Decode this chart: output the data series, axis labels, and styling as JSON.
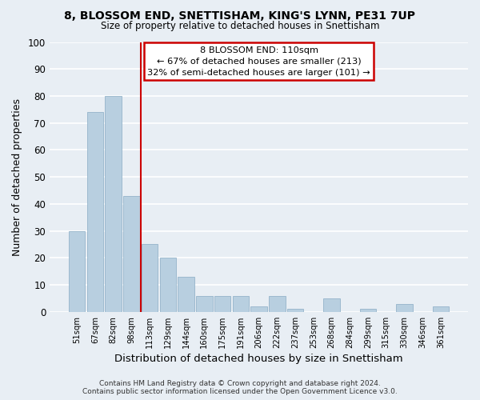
{
  "title": "8, BLOSSOM END, SNETTISHAM, KING'S LYNN, PE31 7UP",
  "subtitle": "Size of property relative to detached houses in Snettisham",
  "xlabel": "Distribution of detached houses by size in Snettisham",
  "ylabel": "Number of detached properties",
  "bar_color": "#b8cfe0",
  "bar_edge_color": "#95b4cb",
  "categories": [
    "51sqm",
    "67sqm",
    "82sqm",
    "98sqm",
    "113sqm",
    "129sqm",
    "144sqm",
    "160sqm",
    "175sqm",
    "191sqm",
    "206sqm",
    "222sqm",
    "237sqm",
    "253sqm",
    "268sqm",
    "284sqm",
    "299sqm",
    "315sqm",
    "330sqm",
    "346sqm",
    "361sqm"
  ],
  "values": [
    30,
    74,
    80,
    43,
    25,
    20,
    13,
    6,
    6,
    6,
    2,
    6,
    1,
    0,
    5,
    0,
    1,
    0,
    3,
    0,
    2
  ],
  "ylim": [
    0,
    100
  ],
  "yticks": [
    0,
    10,
    20,
    30,
    40,
    50,
    60,
    70,
    80,
    90,
    100
  ],
  "vline_x": 3.5,
  "vline_color": "#cc0000",
  "annotation_title": "8 BLOSSOM END: 110sqm",
  "annotation_line1": "← 67% of detached houses are smaller (213)",
  "annotation_line2": "32% of semi-detached houses are larger (101) →",
  "annotation_box_color": "#ffffff",
  "annotation_box_edge": "#cc0000",
  "footer_line1": "Contains HM Land Registry data © Crown copyright and database right 2024.",
  "footer_line2": "Contains public sector information licensed under the Open Government Licence v3.0.",
  "background_color": "#e8eef4",
  "grid_color": "#ffffff"
}
